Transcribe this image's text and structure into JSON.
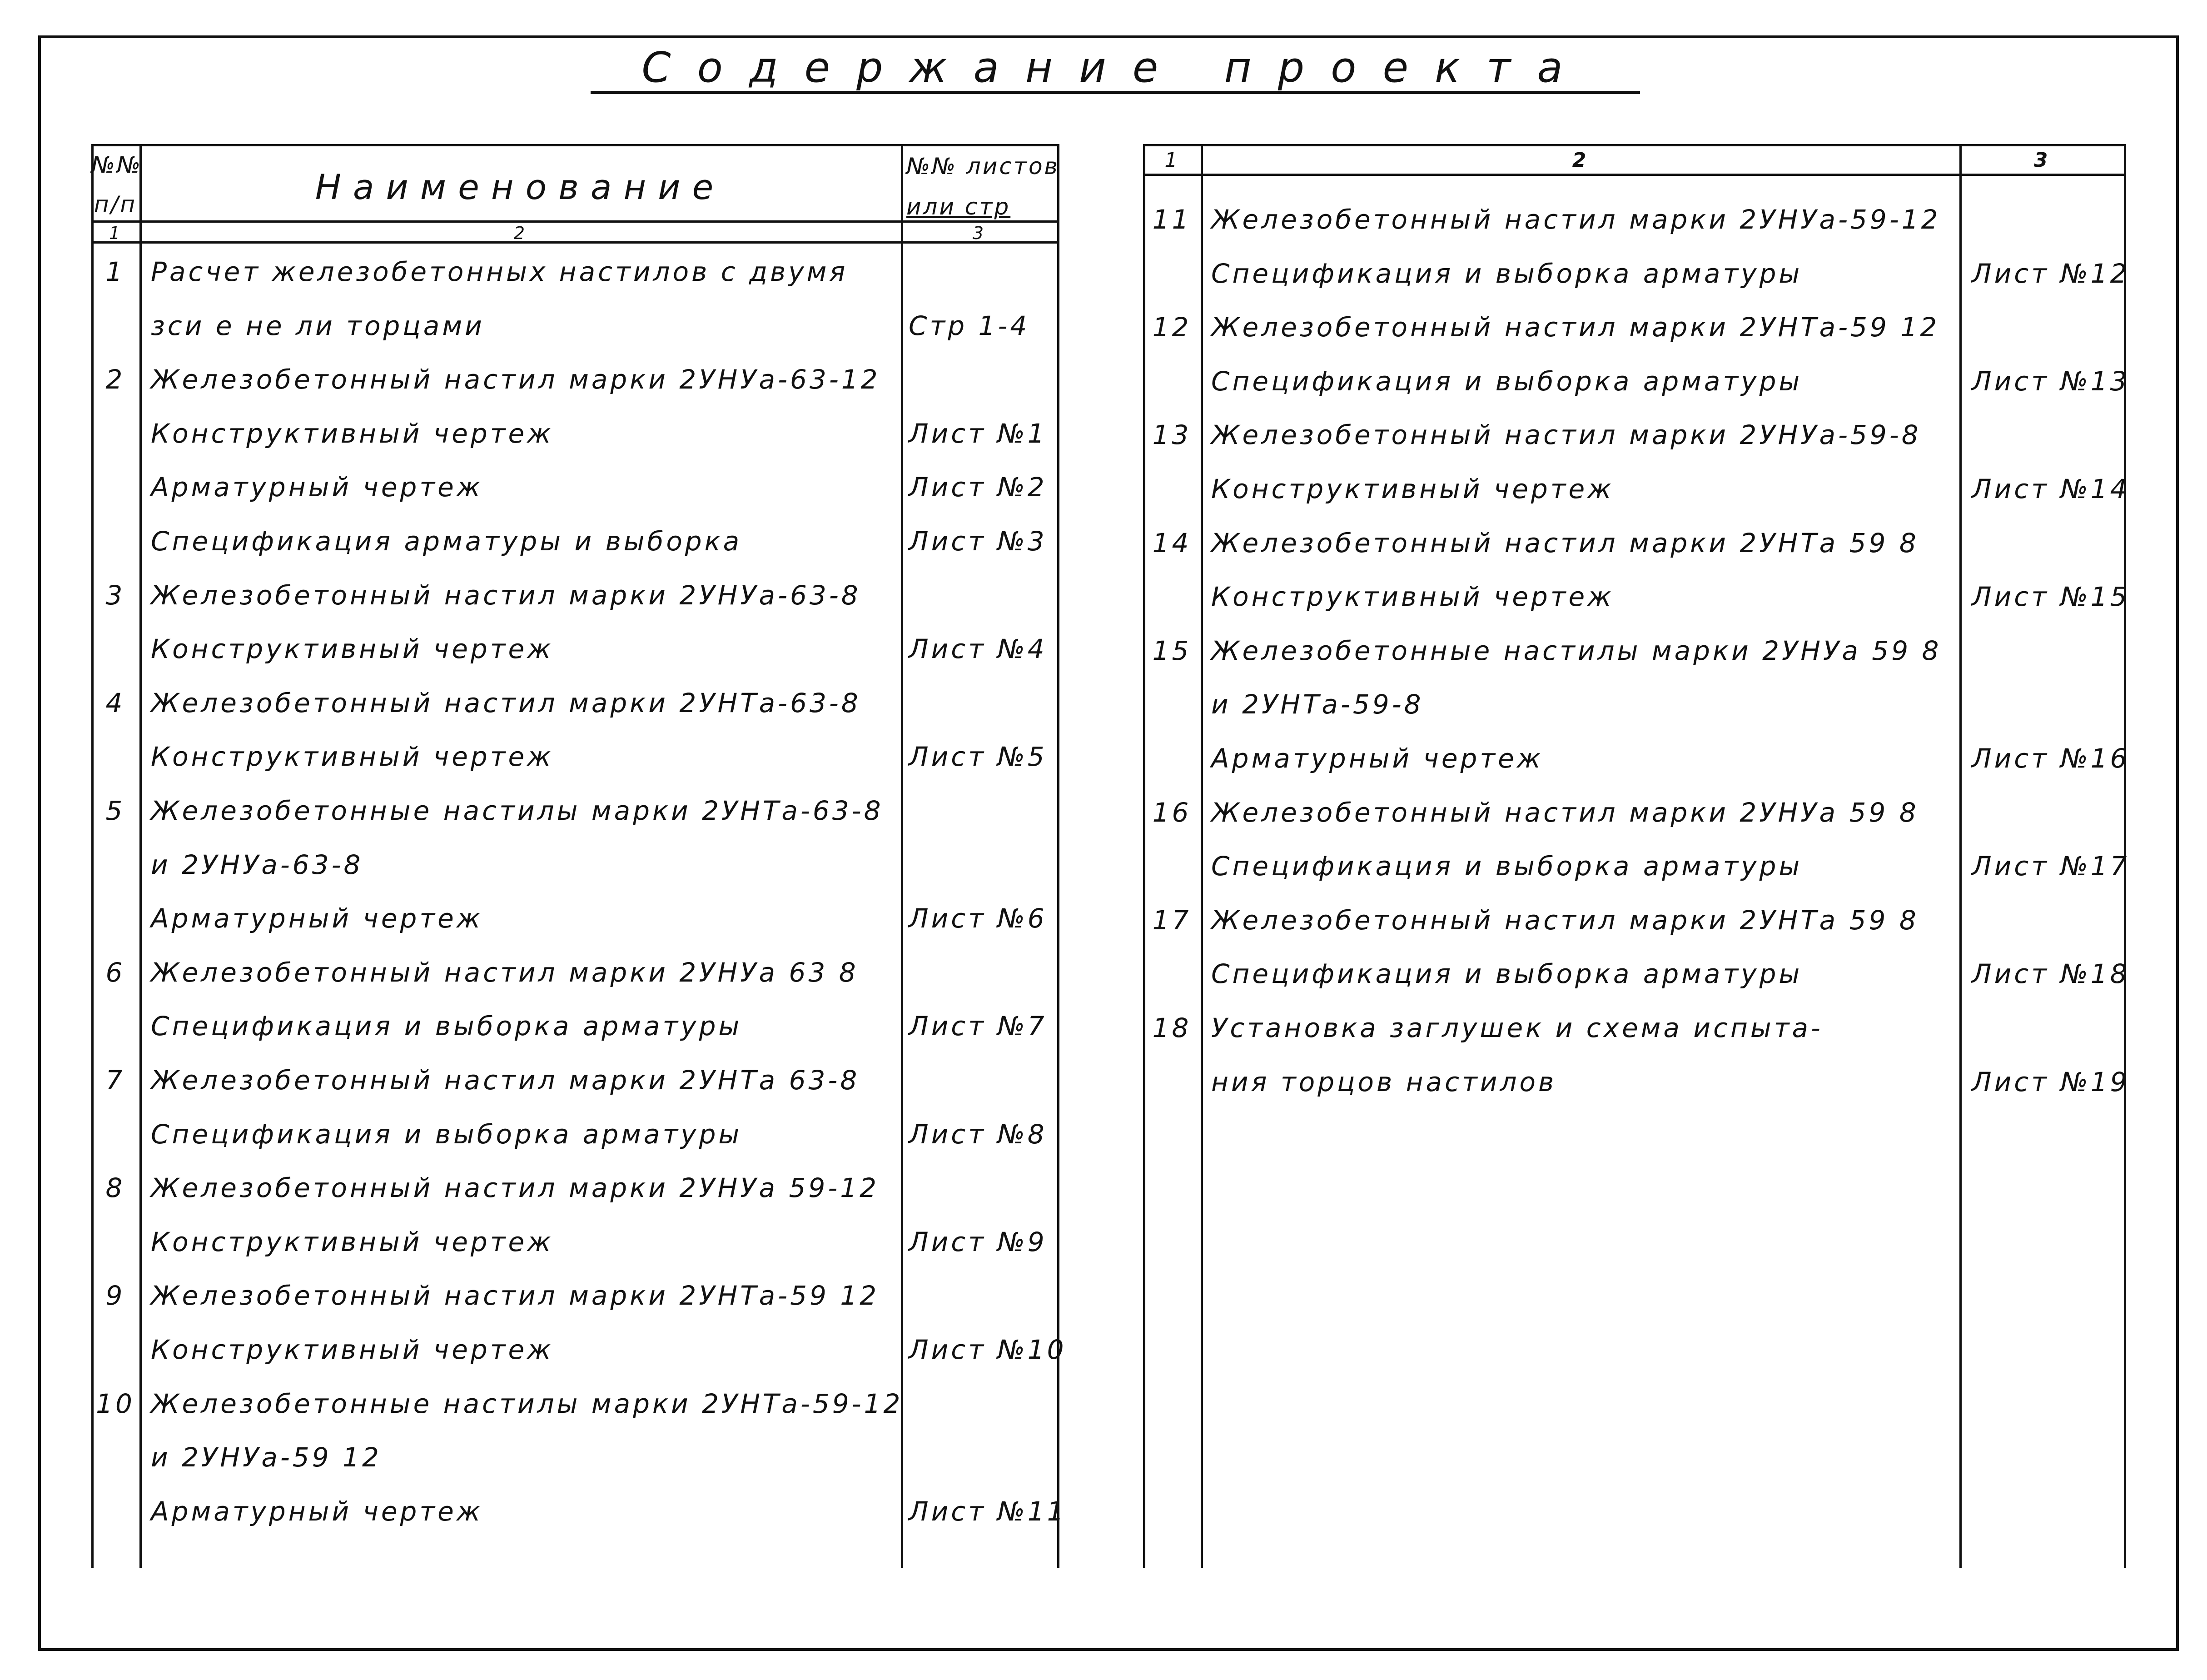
{
  "title": "Содержание проекта",
  "left_table": {
    "header": {
      "num_line1": "№№",
      "num_line2": "п/п",
      "name": "Наименование",
      "sheet_line1": "№№ листов",
      "sheet_line2": "или стр",
      "col1": "1",
      "col2": "2",
      "col3": "3"
    },
    "rows": [
      {
        "num": "1",
        "name": "Расчет железобетонных настилов с двумя",
        "sheet": ""
      },
      {
        "num": "",
        "name": "зси е не ли торцами",
        "sheet": "Стр 1-4"
      },
      {
        "num": "2",
        "name": "Железобетонный настил марки 2УНУа-63-12",
        "sheet": ""
      },
      {
        "num": "",
        "name": "Конструктивный чертеж",
        "sheet": "Лист №1"
      },
      {
        "num": "",
        "name": "Арматурный чертеж",
        "sheet": "Лист №2"
      },
      {
        "num": "",
        "name": "Спецификация арматуры и выборка",
        "sheet": "Лист №3"
      },
      {
        "num": "3",
        "name": "Железобетонный настил марки 2УНУа-63-8",
        "sheet": ""
      },
      {
        "num": "",
        "name": "Конструктивный чертеж",
        "sheet": "Лист №4"
      },
      {
        "num": "4",
        "name": "Железобетонный настил марки 2УНТа-63-8",
        "sheet": ""
      },
      {
        "num": "",
        "name": "Конструктивный чертеж",
        "sheet": "Лист №5"
      },
      {
        "num": "5",
        "name": "Железобетонные настилы марки 2УНТа-63-8",
        "sheet": ""
      },
      {
        "num": "",
        "name": "и 2УНУа-63-8",
        "sheet": ""
      },
      {
        "num": "",
        "name": "Арматурный чертеж",
        "sheet": "Лист №6"
      },
      {
        "num": "6",
        "name": "Железобетонный настил марки 2УНУа 63 8",
        "sheet": ""
      },
      {
        "num": "",
        "name": "Спецификация и выборка арматуры",
        "sheet": "Лист №7"
      },
      {
        "num": "7",
        "name": "Железобетонный настил марки 2УНТа 63-8",
        "sheet": ""
      },
      {
        "num": "",
        "name": "Спецификация и выборка арматуры",
        "sheet": "Лист №8"
      },
      {
        "num": "8",
        "name": "Железобетонный настил марки 2УНУа 59-12",
        "sheet": ""
      },
      {
        "num": "",
        "name": "Конструктивный чертеж",
        "sheet": "Лист №9"
      },
      {
        "num": "9",
        "name": "Железобетонный настил марки 2УНТа-59 12",
        "sheet": ""
      },
      {
        "num": "",
        "name": "Конструктивный чертеж",
        "sheet": "Лист №10"
      },
      {
        "num": "10",
        "name": "Железобетонные настилы марки 2УНТа-59-12",
        "sheet": ""
      },
      {
        "num": "",
        "name": "и 2УНУа-59 12",
        "sheet": ""
      },
      {
        "num": "",
        "name": "Арматурный чертеж",
        "sheet": "Лист №11"
      }
    ]
  },
  "right_table": {
    "header": {
      "col1": "1",
      "col2": "2",
      "col3": "3"
    },
    "rows": [
      {
        "num": "11",
        "name": "Железобетонный настил марки 2УНУа-59-12",
        "sheet": ""
      },
      {
        "num": "",
        "name": "Спецификация и выборка арматуры",
        "sheet": "Лист №12"
      },
      {
        "num": "12",
        "name": "Железобетонный настил марки 2УНТа-59 12",
        "sheet": ""
      },
      {
        "num": "",
        "name": "Спецификация и выборка арматуры",
        "sheet": "Лист №13"
      },
      {
        "num": "13",
        "name": "Железобетонный настил марки 2УНУа-59-8",
        "sheet": ""
      },
      {
        "num": "",
        "name": "Конструктивный чертеж",
        "sheet": "Лист №14"
      },
      {
        "num": "14",
        "name": "Железобетонный настил марки 2УНТа 59 8",
        "sheet": ""
      },
      {
        "num": "",
        "name": "Конструктивный чертеж",
        "sheet": "Лист №15"
      },
      {
        "num": "15",
        "name": "Железобетонные настилы марки 2УНУа 59 8",
        "sheet": ""
      },
      {
        "num": "",
        "name": "и 2УНТа-59-8",
        "sheet": ""
      },
      {
        "num": "",
        "name": "Арматурный чертеж",
        "sheet": "Лист №16"
      },
      {
        "num": "16",
        "name": "Железобетонный настил марки 2УНУа 59 8",
        "sheet": ""
      },
      {
        "num": "",
        "name": "Спецификация и выборка арматуры",
        "sheet": "Лист №17"
      },
      {
        "num": "17",
        "name": "Железобетонный настил марки 2УНТа 59 8",
        "sheet": ""
      },
      {
        "num": "",
        "name": "Спецификация и выборка арматуры",
        "sheet": "Лист №18"
      },
      {
        "num": "18",
        "name": "Установка заглушек и схема испыта-",
        "sheet": ""
      },
      {
        "num": "",
        "name": "ния торцов настилов",
        "sheet": "Лист №19"
      }
    ]
  }
}
